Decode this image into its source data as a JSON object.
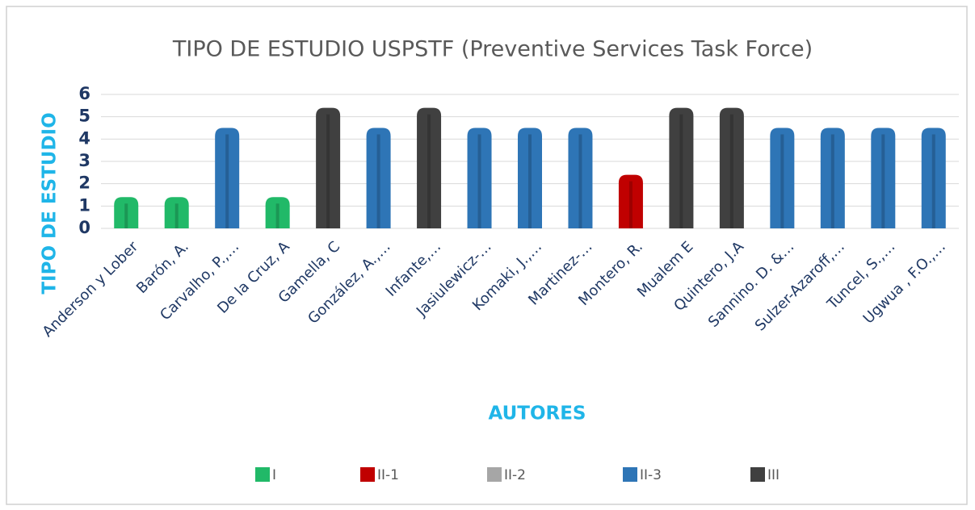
{
  "chart_data": {
    "type": "bar",
    "title": "TIPO DE ESTUDIO USPSTF (Preventive Services Task Force)",
    "x_label": "AUTORES",
    "y_label": "TIPO DE ESTUDIO",
    "categories": [
      "Anderson y Lober",
      "Barón, A.",
      "Carvalho, P.,…",
      "De la Cruz, A",
      "Gamella, C",
      "González, A.,…",
      "Infante,…",
      "Jasiulewicz-…",
      "Komaki, J.,…",
      "Martinez-…",
      "Montero, R.",
      "Mualem E",
      "Quintero, J.A",
      "Sannino. D.  &…",
      "Sulzer-Azaroff,…",
      "Tuncel, S.,…",
      "Ugwua , F.O.,…"
    ],
    "series": [
      {
        "name": "I",
        "color": "#21b968",
        "values": [
          1.4,
          1.4,
          null,
          1.4,
          null,
          null,
          null,
          null,
          null,
          null,
          null,
          null,
          null,
          null,
          null,
          null,
          null
        ]
      },
      {
        "name": "II-1",
        "color": "#c00000",
        "values": [
          null,
          null,
          null,
          null,
          null,
          null,
          null,
          null,
          null,
          null,
          2.4,
          null,
          null,
          null,
          null,
          null,
          null
        ]
      },
      {
        "name": "II-2",
        "color": "#a6a6a6",
        "values": [
          null,
          null,
          null,
          null,
          null,
          null,
          null,
          null,
          null,
          null,
          null,
          null,
          null,
          null,
          null,
          null,
          null
        ]
      },
      {
        "name": "II-3",
        "color": "#2e75b6",
        "values": [
          null,
          null,
          4.5,
          null,
          null,
          4.5,
          null,
          4.5,
          4.5,
          4.5,
          null,
          null,
          null,
          4.5,
          4.5,
          4.5,
          4.5
        ]
      },
      {
        "name": "III",
        "color": "#404040",
        "values": [
          null,
          null,
          null,
          null,
          5.4,
          null,
          5.4,
          null,
          null,
          null,
          null,
          5.4,
          5.4,
          null,
          null,
          null,
          null
        ]
      }
    ],
    "ylim": [
      0,
      6
    ],
    "yticks": [
      0,
      1,
      2,
      3,
      4,
      5,
      6
    ],
    "grid": true,
    "legend": "bottom"
  }
}
